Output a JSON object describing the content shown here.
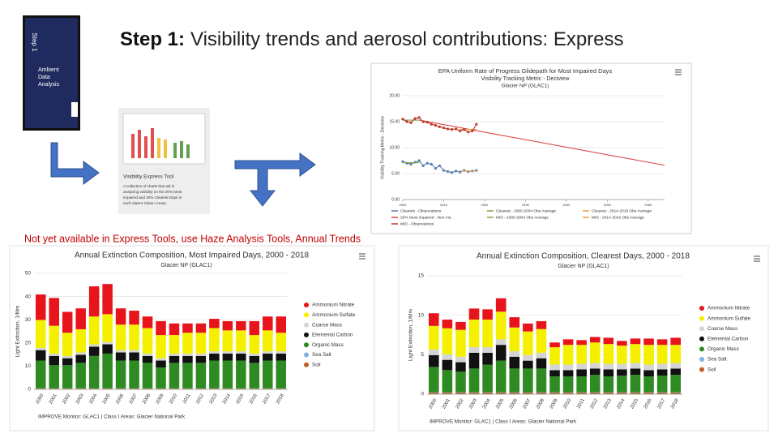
{
  "slide": {
    "title_lead": "Step 1:",
    "title_rest": "Visibility trends and aerosol contributions: Express",
    "note": "Not yet available in Express Tools, use Haze Analysis Tools, Annual Trends",
    "book": {
      "spine": "Step 1",
      "lines": [
        "Ambient",
        "Data",
        "Analysis"
      ]
    },
    "tool": {
      "name": "Visibility Express Tool",
      "lines": [
        "A collection of charts that aid in",
        "analyzing visibility on the 20% Most",
        "Impaired and 20% Clearest Days in",
        "each state's Class I Areas."
      ]
    }
  },
  "chart_data": [
    {
      "type": "line",
      "title": "EPA Uniform Rate of Progress Glidepath for Most Impaired Days",
      "subtitle": "Visibility Tracking Metric - Deciview",
      "site": "Glacier NP (GLAC1)",
      "y_label": "Visibility Tracking Metric - Deciview",
      "xlim": [
        2000,
        2064
      ],
      "xticks": [
        2000,
        2010,
        2020,
        2030,
        2040,
        2050,
        2060
      ],
      "ylim": [
        0,
        20
      ],
      "yticks": [
        {
          "value": 0,
          "label": "0.00"
        },
        {
          "value": 5,
          "label": "5.00"
        },
        {
          "value": 10,
          "label": "10.00"
        },
        {
          "value": 15,
          "label": "15.00"
        },
        {
          "value": 20,
          "label": "20.00"
        }
      ],
      "grid": true,
      "series": [
        {
          "name": "Clearest - Observations",
          "color": "#5b7fb0",
          "markers": true,
          "x": [
            2000,
            2001,
            2002,
            2003,
            2004,
            2005,
            2006,
            2007,
            2008,
            2009,
            2010,
            2011,
            2012,
            2013,
            2014,
            2015,
            2016,
            2017,
            2018
          ],
          "values": [
            7.3,
            7.0,
            6.8,
            7.2,
            7.5,
            6.5,
            7.0,
            6.8,
            6.0,
            6.5,
            5.6,
            5.4,
            5.2,
            5.5,
            5.3,
            5.6,
            5.4,
            5.5,
            5.6
          ]
        },
        {
          "name": "Clearest - 2000-2004 Obs Average",
          "color": "#7f9f3f",
          "markers": false,
          "x": [
            2000,
            2004
          ],
          "values": [
            7.1,
            7.1
          ]
        },
        {
          "name": "Clearest - 2014-2018 Obs Average",
          "color": "#e8a040",
          "markers": false,
          "x": [
            2014,
            2018
          ],
          "values": [
            5.5,
            5.5
          ]
        },
        {
          "name": "20% Most Impaired - Non Anj",
          "color": "#e04848",
          "markers": false,
          "x": [
            2004,
            2064
          ],
          "values": [
            15.3,
            6.6
          ]
        },
        {
          "name": "MID - 2000-2004 Obs Average",
          "color": "#7f9f3f",
          "markers": false,
          "x": [
            2000,
            2004
          ],
          "values": [
            15.3,
            15.3
          ]
        },
        {
          "name": "MID - 2014-2018 Obs Average",
          "color": "#e8a040",
          "markers": false,
          "x": [
            2014,
            2018
          ],
          "values": [
            13.5,
            13.5
          ]
        },
        {
          "name": "MID - Observations",
          "color": "#c0392b",
          "markers": true,
          "x": [
            2000,
            2001,
            2002,
            2003,
            2004,
            2005,
            2006,
            2007,
            2008,
            2009,
            2010,
            2011,
            2012,
            2013,
            2014,
            2015,
            2016,
            2017,
            2018
          ],
          "values": [
            15.5,
            15.0,
            14.8,
            15.6,
            15.8,
            15.0,
            14.9,
            14.5,
            14.3,
            14.0,
            13.8,
            13.6,
            13.5,
            13.6,
            13.2,
            13.5,
            13.0,
            13.2,
            14.5
          ]
        }
      ]
    },
    {
      "type": "stacked_bar",
      "title": "Annual Extinction Composition, Most Impaired Days, 2000 - 2018",
      "site": "Glacier NP (GLAC1)",
      "y_label": "Light Extinction, 1/Mm",
      "footer": "IMPROVE Monitor: GLAC1 | Class I Areas: Glacier National Park",
      "categories": [
        "2000",
        "2001",
        "2002",
        "2003",
        "2004",
        "2005",
        "2006",
        "2007",
        "2008",
        "2009",
        "2010",
        "2011",
        "2012",
        "2013",
        "2014",
        "2015",
        "2016",
        "2017",
        "2018"
      ],
      "ylim": [
        0,
        50
      ],
      "yticks": [
        0,
        10,
        20,
        30,
        40,
        50
      ],
      "grid": true,
      "series": [
        {
          "name": "Ammonium Nitrate",
          "color": "#e8141c",
          "values": [
            11,
            12,
            9,
            9,
            13,
            13,
            7,
            6,
            5,
            6,
            5,
            4,
            4,
            4,
            4,
            4,
            6,
            6,
            7
          ]
        },
        {
          "name": "Ammonium Sulfate",
          "color": "#f5f000",
          "values": [
            12,
            12,
            10,
            10,
            12,
            12,
            11,
            11,
            11,
            10,
            8,
            9,
            9,
            10,
            9,
            9,
            8,
            9,
            8
          ]
        },
        {
          "name": "Coarse Mass",
          "color": "#d4d4d4",
          "values": [
            1,
            1,
            1,
            1,
            1,
            1,
            1,
            1,
            1,
            1,
            1,
            1,
            1,
            1,
            1,
            1,
            1,
            1,
            1
          ]
        },
        {
          "name": "Elemental Carbon",
          "color": "#111111",
          "values": [
            4.5,
            4,
            3,
            3.5,
            4,
            4,
            3.5,
            3.5,
            3,
            3,
            3,
            3,
            3,
            3,
            3,
            3,
            3,
            3,
            3
          ]
        },
        {
          "name": "Organic Mass",
          "color": "#2e8b22",
          "values": [
            12,
            10,
            10,
            11,
            14,
            15,
            12,
            12,
            11,
            9,
            11,
            11,
            11,
            12,
            12,
            12,
            11,
            12,
            12
          ]
        },
        {
          "name": "Sea Salt",
          "color": "#7fb2e0",
          "values": [
            0.1,
            0.1,
            0.1,
            0.1,
            0.1,
            0.1,
            0.1,
            0.1,
            0.1,
            0.1,
            0.1,
            0.1,
            0.1,
            0.1,
            0.1,
            0.1,
            0.1,
            0.1,
            0.1
          ]
        },
        {
          "name": "Soil",
          "color": "#c0602a",
          "values": [
            0.3,
            0.3,
            0.3,
            0.3,
            0.3,
            0.3,
            0.3,
            0.3,
            0.3,
            0.3,
            0.3,
            0.3,
            0.3,
            0.3,
            0.3,
            0.3,
            0.3,
            0.3,
            0.3
          ]
        }
      ]
    },
    {
      "type": "stacked_bar",
      "title": "Annual Extinction Composition, Clearest Days, 2000 - 2018",
      "site": "Glacier NP (GLAC1)",
      "y_label": "Light Extinction, 1/Mm",
      "footer": "IMPROVE Monitor: GLAC1 | Class I Areas: Glacier National Park",
      "categories": [
        "2000",
        "2001",
        "2002",
        "2003",
        "2004",
        "2005",
        "2006",
        "2007",
        "2008",
        "2009",
        "2010",
        "2011",
        "2012",
        "2013",
        "2014",
        "2015",
        "2016",
        "2017",
        "2018"
      ],
      "ylim": [
        0,
        15
      ],
      "yticks": [
        0,
        5,
        10,
        15
      ],
      "grid": true,
      "series": [
        {
          "name": "Ammonium Nitrate",
          "color": "#e8141c",
          "values": [
            1.6,
            1.1,
            1,
            1.4,
            1.3,
            1.7,
            1.3,
            1,
            1,
            0.6,
            0.7,
            0.6,
            0.7,
            0.8,
            0.6,
            0.7,
            0.8,
            0.7,
            0.9
          ]
        },
        {
          "name": "Ammonium Sulfate",
          "color": "#f5f000",
          "values": [
            3,
            3.3,
            3.4,
            3.5,
            3.5,
            3.5,
            3,
            3,
            3,
            2.2,
            2.5,
            2.4,
            2.6,
            2.5,
            2.3,
            2.4,
            2.5,
            2.4,
            2.3
          ]
        },
        {
          "name": "Coarse Mass",
          "color": "#d4d4d4",
          "values": [
            0.7,
            0.7,
            0.7,
            0.7,
            0.7,
            0.7,
            0.7,
            0.7,
            0.7,
            0.7,
            0.7,
            0.7,
            0.7,
            0.7,
            0.7,
            0.7,
            0.7,
            0.7,
            0.7
          ]
        },
        {
          "name": "Elemental Carbon",
          "color": "#111111",
          "values": [
            1.5,
            1.3,
            1.2,
            2,
            1.5,
            2,
            1.5,
            1,
            1.3,
            0.8,
            0.8,
            0.9,
            0.8,
            0.9,
            0.8,
            0.8,
            0.8,
            0.8,
            0.8
          ]
        },
        {
          "name": "Organic Mass",
          "color": "#2e8b22",
          "values": [
            3.2,
            2.8,
            2.6,
            3,
            3.5,
            4,
            3,
            3,
            3,
            2,
            2,
            2,
            2.2,
            2,
            2.1,
            2.2,
            2,
            2.1,
            2.2
          ]
        },
        {
          "name": "Sea Salt",
          "color": "#7fb2e0",
          "values": [
            0.05,
            0.05,
            0.05,
            0.05,
            0.05,
            0.05,
            0.05,
            0.05,
            0.05,
            0.05,
            0.05,
            0.05,
            0.05,
            0.05,
            0.05,
            0.05,
            0.05,
            0.05,
            0.05
          ]
        },
        {
          "name": "Soil",
          "color": "#c0602a",
          "values": [
            0.2,
            0.2,
            0.2,
            0.2,
            0.2,
            0.2,
            0.2,
            0.2,
            0.2,
            0.2,
            0.2,
            0.2,
            0.2,
            0.2,
            0.2,
            0.2,
            0.2,
            0.2,
            0.2
          ]
        }
      ]
    }
  ]
}
